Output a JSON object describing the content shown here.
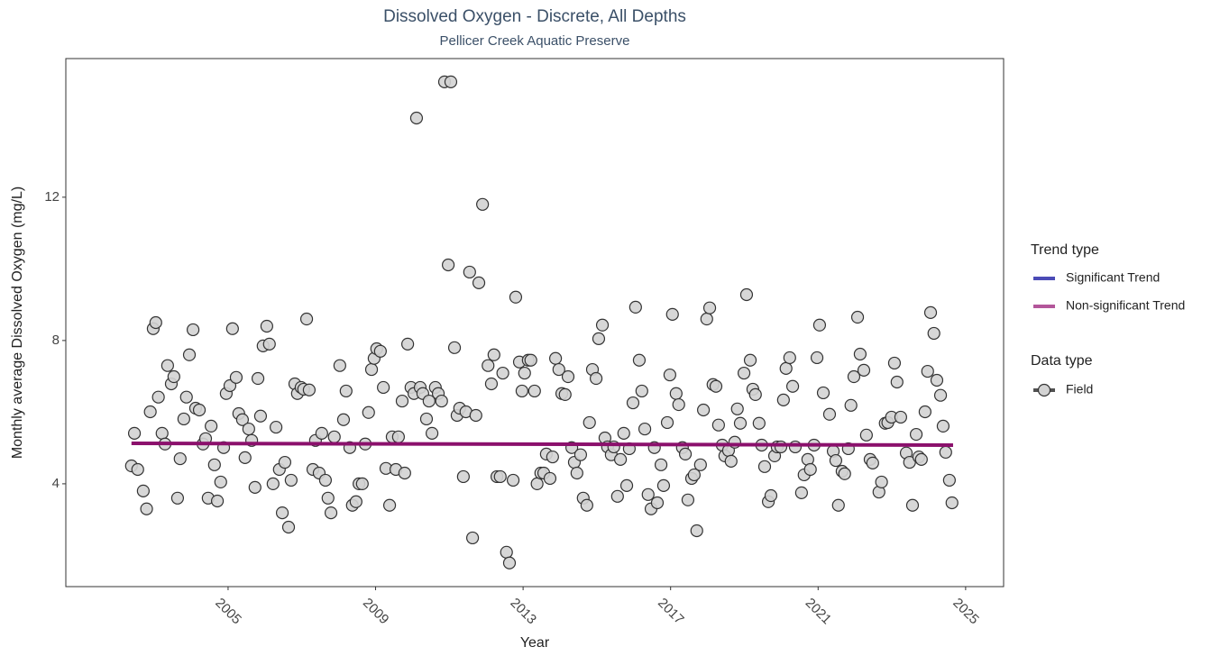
{
  "chart_data": {
    "type": "scatter",
    "title": "Dissolved Oxygen - Discrete, All Depths",
    "subtitle": "Pellicer Creek Aquatic Preserve",
    "xlabel": "Year",
    "ylabel": "Monthly average Dissolved Oxygen (mg/L)",
    "xlim": [
      2000.6,
      2026.03
    ],
    "ylim": [
      1.13,
      15.87
    ],
    "xticks": [
      2005,
      2009,
      2013,
      2017,
      2021,
      2025
    ],
    "yticks": [
      4,
      8,
      12
    ],
    "grid": false,
    "legend_position": "right",
    "series": [
      {
        "name": "Field",
        "color": "#d3d3d3",
        "x": [
          2002.38,
          2002.46,
          2002.55,
          2002.7,
          2002.79,
          2002.89,
          2002.97,
          2003.04,
          2003.11,
          2003.21,
          2003.29,
          2003.36,
          2003.46,
          2003.53,
          2003.63,
          2003.7,
          2003.8,
          2003.87,
          2003.95,
          2004.05,
          2004.12,
          2004.22,
          2004.32,
          2004.39,
          2004.46,
          2004.54,
          2004.63,
          2004.71,
          2004.8,
          2004.88,
          2004.95,
          2005.05,
          2005.12,
          2005.22,
          2005.29,
          2005.39,
          2005.46,
          2005.56,
          2005.64,
          2005.73,
          2005.81,
          2005.88,
          2005.95,
          2006.05,
          2006.12,
          2006.22,
          2006.3,
          2006.39,
          2006.47,
          2006.54,
          2006.64,
          2006.71,
          2006.81,
          2006.88,
          2006.98,
          2007.05,
          2007.13,
          2007.2,
          2007.3,
          2007.37,
          2007.47,
          2007.54,
          2007.64,
          2007.71,
          2007.79,
          2007.88,
          2008.03,
          2008.13,
          2008.2,
          2008.3,
          2008.37,
          2008.47,
          2008.55,
          2008.64,
          2008.72,
          2008.81,
          2008.89,
          2008.96,
          2009.03,
          2009.13,
          2009.21,
          2009.28,
          2009.38,
          2009.45,
          2009.55,
          2009.62,
          2009.72,
          2009.79,
          2009.87,
          2009.96,
          2010.04,
          2010.11,
          2010.21,
          2010.28,
          2010.38,
          2010.45,
          2010.53,
          2010.62,
          2010.7,
          2010.79,
          2010.87,
          2010.97,
          2011.04,
          2011.14,
          2011.21,
          2011.28,
          2011.38,
          2011.45,
          2011.55,
          2011.63,
          2011.72,
          2011.8,
          2011.9,
          2012.05,
          2012.14,
          2012.21,
          2012.29,
          2012.38,
          2012.45,
          2012.55,
          2012.63,
          2012.73,
          2012.8,
          2012.9,
          2012.97,
          2013.04,
          2013.14,
          2013.21,
          2013.31,
          2013.38,
          2013.48,
          2013.56,
          2013.63,
          2013.73,
          2013.8,
          2013.88,
          2013.97,
          2014.05,
          2014.14,
          2014.22,
          2014.32,
          2014.39,
          2014.46,
          2014.56,
          2014.63,
          2014.73,
          2014.8,
          2014.88,
          2014.98,
          2015.05,
          2015.15,
          2015.22,
          2015.29,
          2015.39,
          2015.46,
          2015.56,
          2015.64,
          2015.73,
          2015.81,
          2015.88,
          2015.98,
          2016.05,
          2016.15,
          2016.22,
          2016.3,
          2016.39,
          2016.47,
          2016.56,
          2016.64,
          2016.74,
          2016.81,
          2016.91,
          2016.98,
          2017.05,
          2017.15,
          2017.22,
          2017.32,
          2017.4,
          2017.47,
          2017.57,
          2017.64,
          2017.71,
          2017.81,
          2017.89,
          2017.98,
          2018.06,
          2018.15,
          2018.23,
          2018.3,
          2018.4,
          2018.47,
          2018.57,
          2018.64,
          2018.74,
          2018.81,
          2018.89,
          2018.99,
          2019.06,
          2019.16,
          2019.23,
          2019.3,
          2019.4,
          2019.47,
          2019.55,
          2019.65,
          2019.72,
          2019.82,
          2019.89,
          2019.99,
          2020.06,
          2020.13,
          2020.23,
          2020.31,
          2020.38,
          2020.55,
          2020.62,
          2020.72,
          2020.79,
          2020.89,
          2020.97,
          2021.04,
          2021.14,
          2021.31,
          2021.41,
          2021.48,
          2021.55,
          2021.65,
          2021.72,
          2021.82,
          2021.89,
          2021.97,
          2022.07,
          2022.14,
          2022.24,
          2022.31,
          2022.41,
          2022.48,
          2022.65,
          2022.72,
          2022.82,
          2022.89,
          2022.99,
          2023.07,
          2023.14,
          2023.24,
          2023.39,
          2023.48,
          2023.56,
          2023.66,
          2023.73,
          2023.8,
          2023.9,
          2023.97,
          2024.05,
          2024.14,
          2024.22,
          2024.32,
          2024.39,
          2024.46,
          2024.56,
          2024.63
        ],
        "values": [
          4.5,
          5.41,
          4.4,
          3.8,
          3.3,
          6.01,
          8.33,
          8.5,
          6.42,
          5.41,
          5.11,
          7.3,
          6.79,
          6.99,
          3.6,
          4.7,
          5.81,
          6.42,
          7.6,
          8.3,
          6.11,
          6.06,
          5.11,
          5.26,
          3.6,
          5.61,
          4.53,
          3.52,
          4.05,
          5.01,
          6.52,
          6.74,
          8.33,
          6.97,
          5.96,
          5.79,
          4.73,
          5.53,
          5.21,
          3.9,
          6.94,
          5.89,
          7.85,
          8.4,
          7.9,
          4.0,
          5.58,
          4.4,
          3.19,
          4.6,
          2.79,
          4.1,
          6.79,
          6.52,
          6.69,
          6.64,
          8.6,
          6.62,
          4.4,
          5.21,
          4.3,
          5.41,
          4.1,
          3.6,
          3.19,
          5.31,
          7.3,
          5.79,
          6.59,
          5.01,
          3.4,
          3.5,
          4.0,
          4.0,
          5.11,
          5.99,
          7.19,
          7.5,
          7.77,
          7.7,
          6.69,
          4.43,
          3.4,
          5.31,
          4.4,
          5.31,
          6.31,
          4.3,
          7.9,
          6.69,
          6.52,
          14.21,
          6.69,
          6.52,
          5.81,
          6.31,
          5.41,
          6.69,
          6.52,
          6.31,
          15.22,
          10.11,
          15.22,
          7.8,
          5.91,
          6.11,
          4.2,
          6.01,
          9.91,
          2.49,
          5.91,
          9.61,
          11.8,
          7.3,
          6.79,
          7.6,
          4.2,
          4.2,
          7.09,
          2.09,
          1.79,
          4.1,
          9.21,
          7.4,
          6.59,
          7.09,
          7.45,
          7.45,
          6.59,
          4.0,
          4.3,
          4.3,
          4.83,
          4.15,
          4.75,
          7.5,
          7.19,
          6.52,
          6.49,
          6.99,
          5.01,
          4.6,
          4.3,
          4.81,
          3.6,
          3.4,
          5.71,
          7.19,
          6.94,
          8.05,
          8.43,
          5.28,
          5.03,
          4.81,
          5.03,
          3.65,
          4.68,
          5.41,
          3.95,
          4.98,
          6.26,
          8.93,
          7.45,
          6.59,
          5.53,
          3.7,
          3.3,
          5.01,
          3.47,
          4.53,
          3.95,
          5.71,
          7.04,
          8.73,
          6.52,
          6.21,
          5.01,
          4.83,
          3.55,
          4.15,
          4.25,
          2.69,
          4.53,
          6.06,
          8.6,
          8.91,
          6.77,
          6.72,
          5.64,
          5.08,
          4.78,
          4.93,
          4.63,
          5.16,
          6.09,
          5.69,
          7.09,
          9.28,
          7.45,
          6.64,
          6.49,
          5.69,
          5.08,
          4.48,
          3.5,
          3.67,
          4.78,
          5.03,
          5.03,
          6.34,
          7.22,
          7.52,
          6.72,
          5.03,
          3.75,
          4.25,
          4.68,
          4.4,
          5.08,
          7.52,
          8.43,
          6.54,
          5.94,
          4.91,
          4.65,
          3.4,
          4.35,
          4.28,
          4.98,
          6.19,
          6.99,
          8.65,
          7.62,
          7.17,
          5.36,
          4.68,
          4.58,
          3.77,
          4.05,
          5.69,
          5.71,
          5.86,
          7.37,
          6.84,
          5.86,
          4.86,
          4.6,
          3.4,
          5.38,
          4.75,
          4.68,
          6.01,
          7.14,
          8.78,
          8.2,
          6.89,
          6.47,
          5.61,
          4.88,
          4.1,
          3.47
        ]
      }
    ],
    "trend": {
      "x": [
        2002.38,
        2024.66
      ],
      "values": [
        5.13,
        5.08
      ],
      "color": "#8b106c"
    },
    "trend_legend": {
      "title": "Trend type",
      "items": [
        {
          "name": "Significant Trend",
          "color": "#4b4bb6"
        },
        {
          "name": "Non-significant Trend",
          "color": "#b3569a"
        }
      ]
    },
    "data_legend_title": "Data type"
  }
}
